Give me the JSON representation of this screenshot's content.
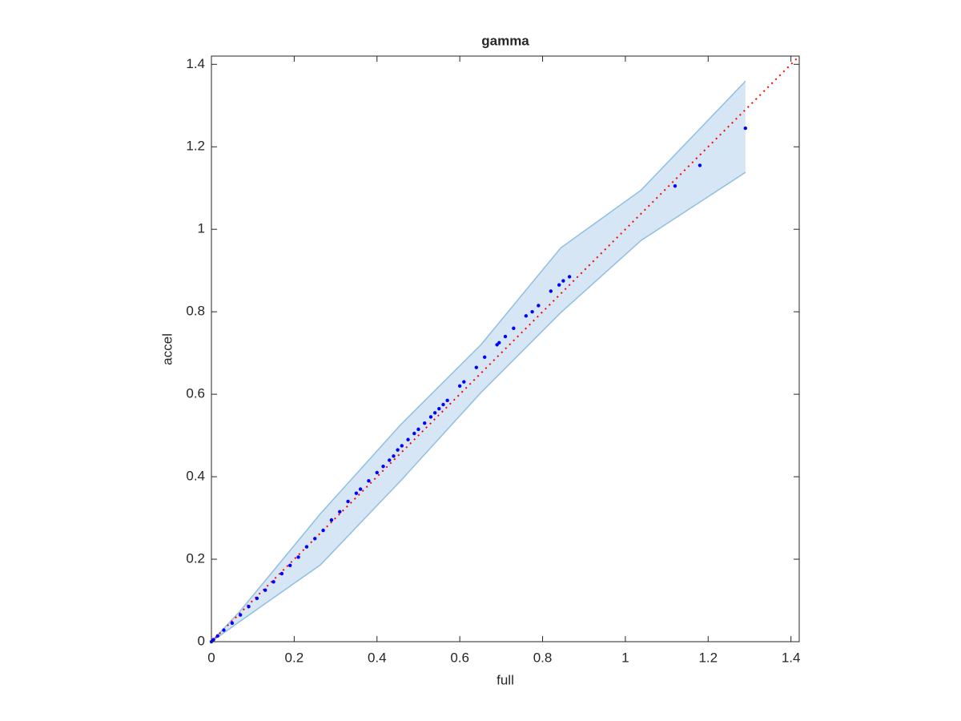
{
  "chart_data": {
    "type": "scatter",
    "title": "gamma",
    "xlabel": "full",
    "ylabel": "accel",
    "xlim": [
      0,
      1.42
    ],
    "ylim": [
      0,
      1.42
    ],
    "xticks": [
      0,
      0.2,
      0.4,
      0.6,
      0.8,
      1,
      1.2,
      1.4
    ],
    "yticks": [
      0,
      0.2,
      0.4,
      0.6,
      0.8,
      1,
      1.2,
      1.4
    ],
    "band": {
      "color": "#d6e6f4",
      "edge_color": "#8fbfe0",
      "x": [
        0,
        0.07,
        0.263,
        0.457,
        0.651,
        0.844,
        1.038,
        1.29
      ],
      "upper": [
        0,
        0.075,
        0.31,
        0.526,
        0.72,
        0.955,
        1.095,
        1.359
      ],
      "lower": [
        0,
        0.05,
        0.186,
        0.39,
        0.604,
        0.798,
        0.973,
        1.138
      ]
    },
    "reference_line": {
      "color": "#ff0000",
      "x": [
        0,
        1.42
      ],
      "y": [
        0,
        1.42
      ]
    },
    "series": [
      {
        "color": "#0000ff",
        "x": [
          0,
          0.005,
          0.015,
          0.03,
          0.05,
          0.07,
          0.09,
          0.11,
          0.13,
          0.15,
          0.17,
          0.19,
          0.21,
          0.23,
          0.25,
          0.27,
          0.29,
          0.31,
          0.33,
          0.35,
          0.36,
          0.38,
          0.4,
          0.415,
          0.43,
          0.44,
          0.45,
          0.46,
          0.475,
          0.49,
          0.5,
          0.515,
          0.53,
          0.54,
          0.55,
          0.56,
          0.57,
          0.6,
          0.61,
          0.64,
          0.66,
          0.69,
          0.695,
          0.71,
          0.73,
          0.76,
          0.775,
          0.79,
          0.82,
          0.84,
          0.85,
          0.865,
          1.12,
          1.18,
          1.29
        ],
        "values": [
          0,
          0.005,
          0.014,
          0.028,
          0.045,
          0.065,
          0.085,
          0.105,
          0.125,
          0.145,
          0.165,
          0.185,
          0.205,
          0.23,
          0.25,
          0.27,
          0.295,
          0.315,
          0.34,
          0.36,
          0.37,
          0.39,
          0.41,
          0.425,
          0.44,
          0.45,
          0.465,
          0.475,
          0.49,
          0.505,
          0.515,
          0.53,
          0.545,
          0.555,
          0.565,
          0.575,
          0.585,
          0.62,
          0.63,
          0.665,
          0.69,
          0.72,
          0.725,
          0.74,
          0.76,
          0.79,
          0.8,
          0.815,
          0.85,
          0.865,
          0.875,
          0.885,
          1.105,
          1.155,
          1.245
        ]
      }
    ]
  }
}
